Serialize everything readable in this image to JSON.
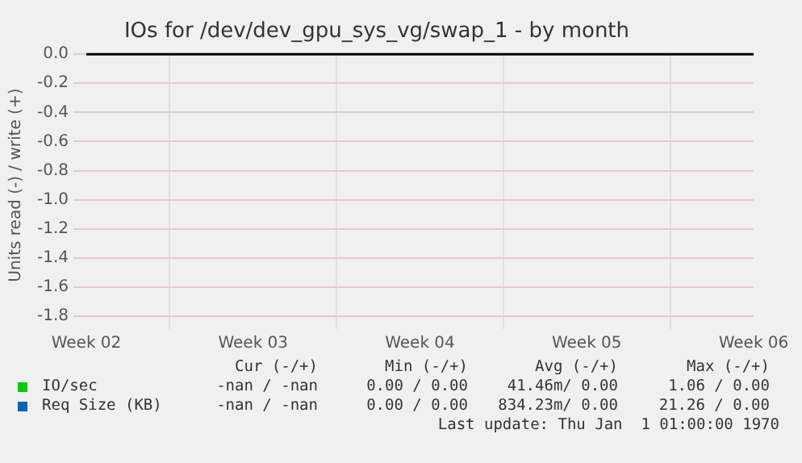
{
  "chart_data": {
    "type": "line",
    "title": "IOs for /dev/dev_gpu_sys_vg/swap_1 - by month",
    "ylabel": "Units read (-) / write (+)",
    "categories": [
      "Week 02",
      "Week 03",
      "Week 04",
      "Week 05",
      "Week 06"
    ],
    "series": [
      {
        "name": "IO/sec",
        "color": "#00cc00",
        "values": [
          null,
          null,
          null,
          null,
          null
        ]
      },
      {
        "name": "Req Size (KB)",
        "color": "#0066b3",
        "values": [
          null,
          null,
          null,
          null,
          null
        ]
      }
    ],
    "ylim": [
      -1.8,
      0
    ],
    "yticks": [
      {
        "value": 0,
        "label": "0.0"
      },
      -0.2,
      -0.4,
      -0.6,
      -0.8,
      {
        "value": -1,
        "label": "-1.0"
      },
      -1.2,
      -1.4,
      -1.6,
      -1.8
    ],
    "ref_lines": [
      {
        "axis": "y",
        "value": 0,
        "color": "#000000"
      }
    ],
    "grid": true,
    "legend": "bottom",
    "annotations": [
      "Cur (-/+)",
      "Min (-/+)",
      "Avg (-/+)",
      "Max (-/+)",
      "-nan / -nan",
      "0.00 / 0.00",
      "41.46m/ 0.00",
      "1.06 / 0.00",
      "-nan / -nan",
      "0.00 / 0.00",
      "834.23m/ 0.00",
      "21.26 / 0.00",
      "Last update: Thu Jan  1 01:00:00 1970"
    ]
  }
}
